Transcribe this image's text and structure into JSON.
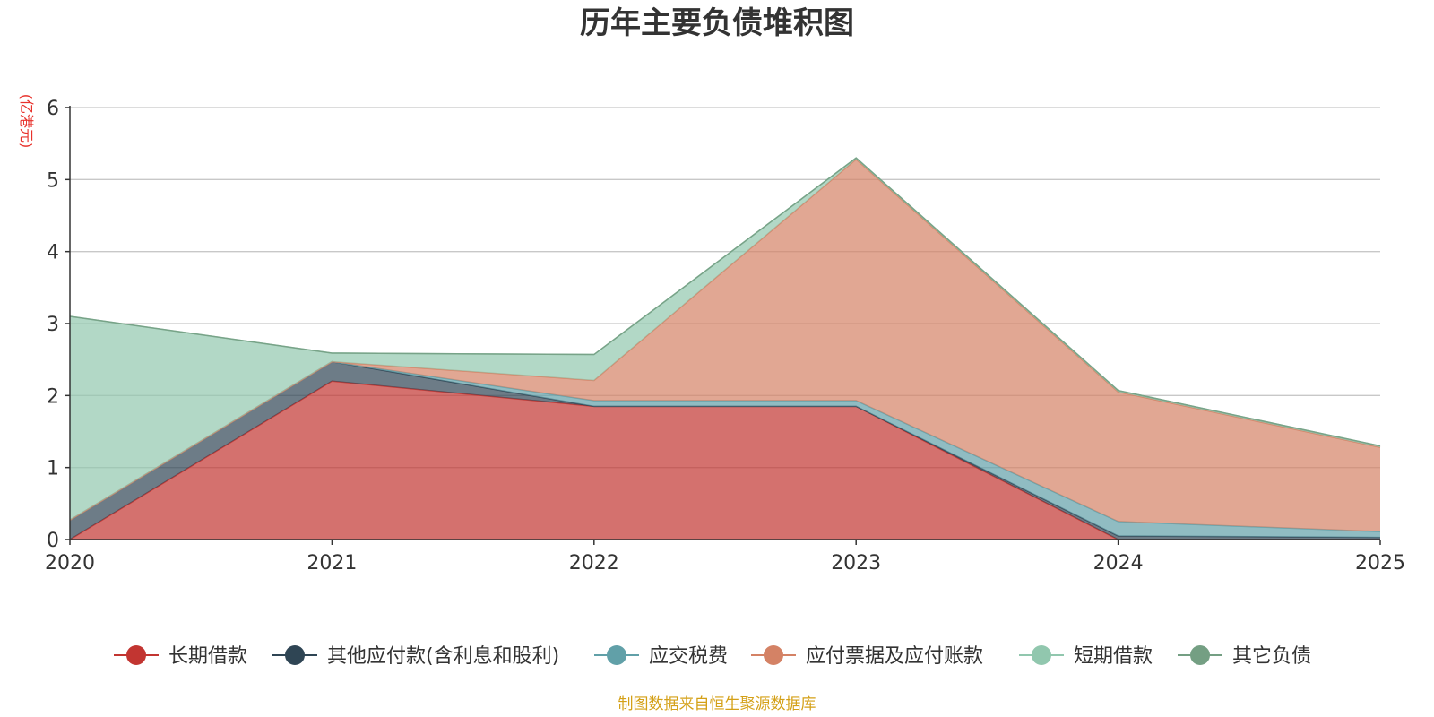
{
  "chart_data": {
    "type": "area",
    "stacked": true,
    "title": "历年主要负债堆积图",
    "ylabel": "(亿港元)",
    "xlabel": "",
    "x": [
      "2020",
      "2021",
      "2022",
      "2023",
      "2024",
      "2025"
    ],
    "ylim": [
      0,
      6
    ],
    "yticks": [
      "0",
      "1",
      "2",
      "3",
      "4",
      "5",
      "6"
    ],
    "grid": true,
    "legend_position": "bottom",
    "series": [
      {
        "name": "长期借款",
        "color": "#c23531",
        "values": [
          0.0,
          2.2,
          1.85,
          1.85,
          0.0,
          0.0
        ]
      },
      {
        "name": "其他应付款(含利息和股利)",
        "color": "#2f4554",
        "values": [
          0.27,
          0.27,
          0.0,
          0.0,
          0.05,
          0.03
        ]
      },
      {
        "name": "应交税费",
        "color": "#61a0a8",
        "values": [
          0.0,
          0.0,
          0.08,
          0.08,
          0.2,
          0.08
        ]
      },
      {
        "name": "应付票据及应付账款",
        "color": "#d48265",
        "values": [
          0.0,
          0.0,
          0.28,
          3.35,
          1.8,
          1.17
        ]
      },
      {
        "name": "短期借款",
        "color": "#91c7ae",
        "values": [
          2.83,
          0.12,
          0.36,
          0.02,
          0.02,
          0.02
        ]
      },
      {
        "name": "其它负债",
        "color": "#749f83",
        "values": [
          0.0,
          0.0,
          0.0,
          0.0,
          0.0,
          0.0
        ]
      }
    ],
    "source": "制图数据来自恒生聚源数据库"
  }
}
